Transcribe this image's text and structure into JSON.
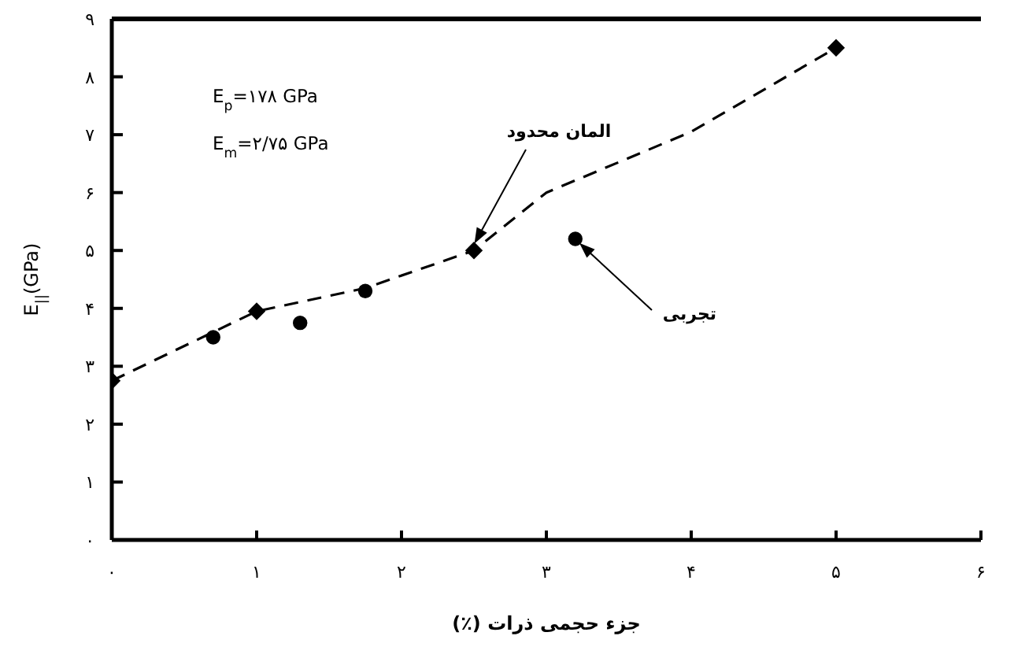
{
  "chart_data": {
    "type": "scatter",
    "ylabel": "E$_{||}$(GPa)",
    "xlabel": "جزء حجمی ذرات (٪)",
    "annotations": [
      "E$_{p}$=۱۷۸ GPa",
      "E$_{m}$=۲/۷۵ GPa",
      "المان محدود",
      "تجربی"
    ],
    "xlim": [
      0,
      6
    ],
    "xticks": [
      {
        "value": 0,
        "label": "۰"
      },
      {
        "value": 1,
        "label": "۱"
      },
      {
        "value": 2,
        "label": "۲"
      },
      {
        "value": 3,
        "label": "۳"
      },
      {
        "value": 4,
        "label": "۴"
      },
      {
        "value": 5,
        "label": "۵"
      },
      {
        "value": 6,
        "label": "۶"
      }
    ],
    "ylim": [
      0,
      9
    ],
    "yticks": [
      {
        "value": 0,
        "label": "۰"
      },
      {
        "value": 1,
        "label": "۱"
      },
      {
        "value": 2,
        "label": "۲"
      },
      {
        "value": 3,
        "label": "۳"
      },
      {
        "value": 4,
        "label": "۴"
      },
      {
        "value": 5,
        "label": "۵"
      },
      {
        "value": 6,
        "label": "۶"
      },
      {
        "value": 7,
        "label": "۷"
      },
      {
        "value": 8,
        "label": "۸"
      },
      {
        "value": 9,
        "label": "۹"
      }
    ],
    "series": [
      {
        "type": "line",
        "x": [
          0,
          1,
          1.75,
          2.5,
          3,
          4,
          5
        ],
        "values": [
          2.75,
          3.95,
          4.35,
          5,
          6,
          7.05,
          8.5
        ],
        "color": "#000000",
        "line_style": "dashed",
        "marker": "none"
      },
      {
        "x": [
          0,
          1,
          2.5,
          5
        ],
        "values": [
          2.75,
          3.95,
          5,
          8.5
        ],
        "color": "#000000",
        "marker": "diamond"
      },
      {
        "x": [
          0.7,
          1.3,
          1.75,
          3.2
        ],
        "values": [
          3.5,
          3.75,
          4.3,
          5.2
        ],
        "color": "#000000",
        "marker": "circle"
      }
    ]
  }
}
